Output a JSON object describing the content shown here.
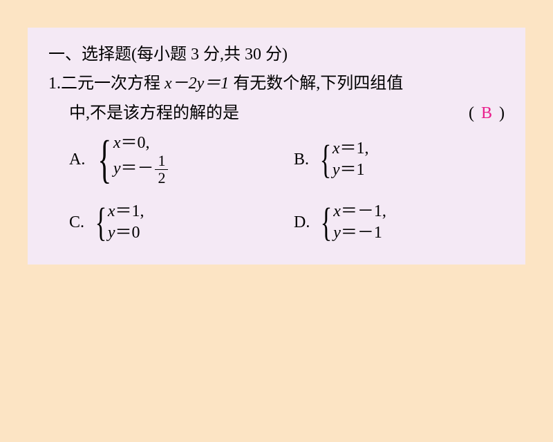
{
  "header": {
    "section_label": "一、选择题",
    "points_text": "(每小题 3 分,共 30 分)"
  },
  "question": {
    "number": "1.",
    "text_part1": "二元一次方程 ",
    "equation": "x－2y＝1",
    "text_part2": " 有无数个解,下列四组值",
    "line2": "中,不是该方程的解的是",
    "paren_open": "(",
    "answer": "B",
    "paren_close": ")",
    "answer_color": "#e91e8c"
  },
  "options": {
    "A": {
      "label": "A.",
      "eq1_lhs": "x",
      "eq1_rhs": "0,",
      "eq2_lhs": "y",
      "eq2_rhs_prefix": "－",
      "eq2_frac_num": "1",
      "eq2_frac_den": "2"
    },
    "B": {
      "label": "B.",
      "eq1_lhs": "x",
      "eq1_rhs": "1,",
      "eq2_lhs": "y",
      "eq2_rhs": "1"
    },
    "C": {
      "label": "C.",
      "eq1_lhs": "x",
      "eq1_rhs": "1,",
      "eq2_lhs": "y",
      "eq2_rhs": "0"
    },
    "D": {
      "label": "D.",
      "eq1_lhs": "x",
      "eq1_rhs": "－1,",
      "eq2_lhs": "y",
      "eq2_rhs": "－1"
    }
  },
  "style": {
    "page_bg": "#f4e9f5",
    "body_bg": "#fce4c4",
    "text_color": "#000000",
    "font_size_main": 24
  }
}
